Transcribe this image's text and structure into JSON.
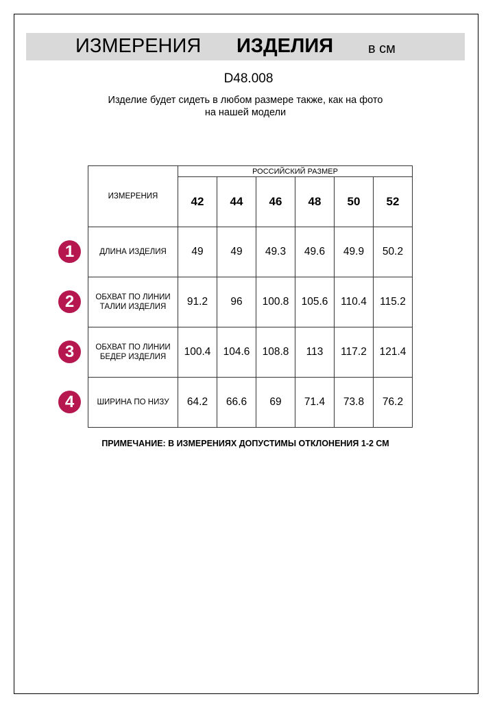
{
  "header": {
    "title_regular": "ИЗМЕРЕНИЯ",
    "title_bold": "ИЗДЕЛИЯ",
    "unit": "в см"
  },
  "product_code": "D48.008",
  "subtitle": [
    "Изделие будет сидеть в любом размере также, как на фото",
    "на нашей модели"
  ],
  "accent_color": "#b5174e",
  "table": {
    "measure_header": "ИЗМЕРЕНИЯ",
    "size_group_header": "РОССИЙСКИЙ РАЗМЕР",
    "sizes": [
      "42",
      "44",
      "46",
      "48",
      "50",
      "52"
    ],
    "rows": [
      {
        "num": "1",
        "label": "ДЛИНА ИЗДЕЛИЯ",
        "values": [
          "49",
          "49",
          "49.3",
          "49.6",
          "49.9",
          "50.2"
        ]
      },
      {
        "num": "2",
        "label": "ОБХВАТ ПО ЛИНИИ ТАЛИИ ИЗДЕЛИЯ",
        "values": [
          "91.2",
          "96",
          "100.8",
          "105.6",
          "110.4",
          "115.2"
        ]
      },
      {
        "num": "3",
        "label": "ОБХВАТ ПО ЛИНИИ БЕДЕР ИЗДЕЛИЯ",
        "values": [
          "100.4",
          "104.6",
          "108.8",
          "113",
          "117.2",
          "121.4"
        ]
      },
      {
        "num": "4",
        "label": "ШИРИНА ПО НИЗУ",
        "values": [
          "64.2",
          "66.6",
          "69",
          "71.4",
          "73.8",
          "76.2"
        ]
      }
    ]
  },
  "note": "ПРИМЕЧАНИЕ: В ИЗМЕРЕНИЯХ ДОПУСТИМЫ ОТКЛОНЕНИЯ 1-2 СМ"
}
